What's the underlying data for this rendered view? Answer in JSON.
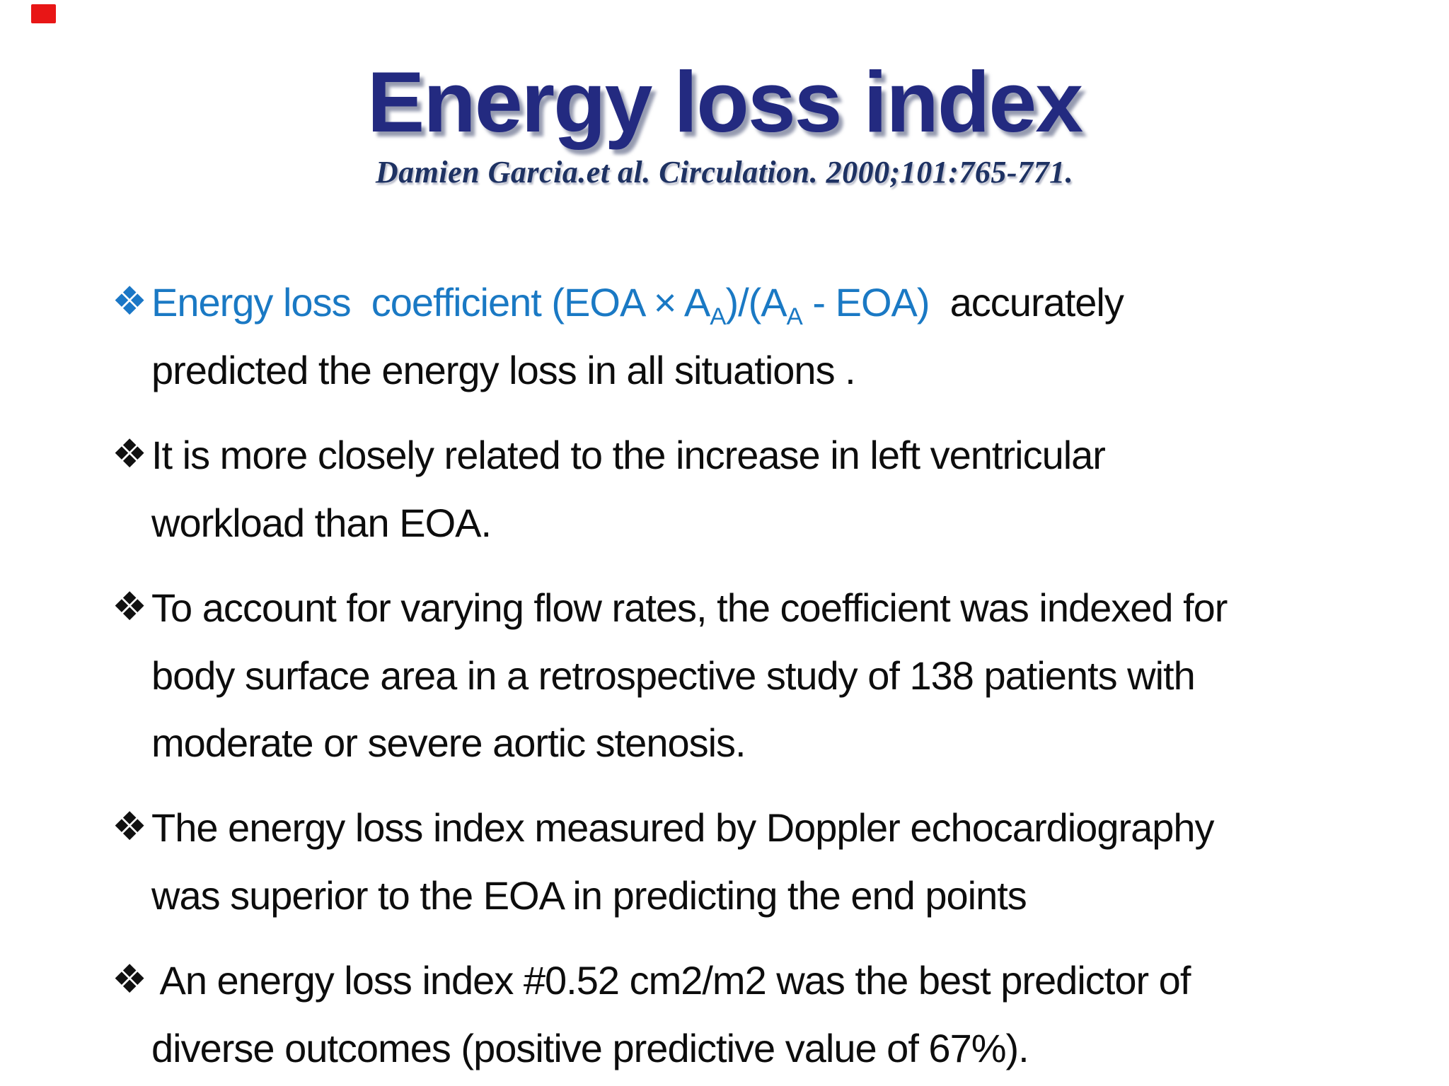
{
  "slide": {
    "title": "Energy loss index",
    "citation": "Damien Garcia.et al. Circulation. 2000;101:765-771.",
    "bullet_marker": "❖",
    "colors": {
      "title_navy": "#232a80",
      "citation_navy": "#1e3263",
      "formula_blue": "#1a79c4",
      "body_black": "#0d0d0d",
      "corner_mark_red": "#e81616"
    },
    "bullets": [
      {
        "segments": {
          "blue1": "Energy loss  coefficient (EOA × A",
          "sub1": "A",
          "blue2": ")/(A",
          "sub2": "A",
          "blue3": " - EOA)",
          "tail": "  accurately"
        },
        "lines": [
          "predicted the energy loss in all situations ."
        ]
      },
      {
        "lines": [
          "It is more closely related to the increase in left ventricular",
          "workload than EOA."
        ]
      },
      {
        "lines": [
          "To account for varying flow rates, the coefficient was indexed for",
          "body surface area in a retrospective study of 138 patients with",
          "moderate or severe aortic stenosis."
        ]
      },
      {
        "lines": [
          "The energy loss index measured by Doppler echocardiography",
          "was superior to the EOA in predicting the end points"
        ]
      },
      {
        "lines": [
          " An energy loss index #0.52 cm2/m2 was the best predictor of",
          "diverse outcomes (positive predictive value of 67%)."
        ]
      }
    ]
  }
}
